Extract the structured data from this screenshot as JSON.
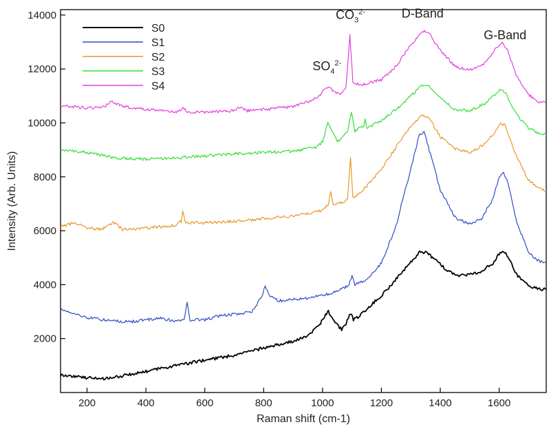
{
  "chart_data": {
    "type": "line",
    "title": "",
    "xlabel": "Raman shift (cm-1)",
    "ylabel": "Intensity (Arb. Units)",
    "xlim": [
      110,
      1760
    ],
    "ylim": [
      0,
      14200
    ],
    "xticks": [
      200,
      400,
      600,
      800,
      1000,
      1200,
      1400,
      1600
    ],
    "yticks": [
      2000,
      4000,
      6000,
      8000,
      10000,
      12000,
      14000
    ],
    "grid": false,
    "legend_position": "top-left",
    "series": [
      {
        "name": "S0",
        "color": "#000000",
        "points": [
          [
            110,
            650
          ],
          [
            200,
            550
          ],
          [
            250,
            500
          ],
          [
            300,
            580
          ],
          [
            400,
            780
          ],
          [
            500,
            1000
          ],
          [
            600,
            1200
          ],
          [
            700,
            1380
          ],
          [
            800,
            1650
          ],
          [
            900,
            1900
          ],
          [
            950,
            2100
          ],
          [
            990,
            2500
          ],
          [
            1010,
            2900
          ],
          [
            1020,
            3000
          ],
          [
            1035,
            2700
          ],
          [
            1050,
            2500
          ],
          [
            1065,
            2350
          ],
          [
            1080,
            2550
          ],
          [
            1095,
            2950
          ],
          [
            1105,
            2700
          ],
          [
            1120,
            2800
          ],
          [
            1150,
            3100
          ],
          [
            1200,
            3600
          ],
          [
            1250,
            4200
          ],
          [
            1300,
            4850
          ],
          [
            1330,
            5200
          ],
          [
            1350,
            5200
          ],
          [
            1380,
            4950
          ],
          [
            1420,
            4550
          ],
          [
            1460,
            4350
          ],
          [
            1500,
            4380
          ],
          [
            1540,
            4500
          ],
          [
            1580,
            4800
          ],
          [
            1600,
            5150
          ],
          [
            1615,
            5250
          ],
          [
            1630,
            5050
          ],
          [
            1660,
            4350
          ],
          [
            1700,
            3950
          ],
          [
            1730,
            3850
          ],
          [
            1760,
            3820
          ]
        ]
      },
      {
        "name": "S1",
        "color": "#2b4bc4",
        "points": [
          [
            110,
            3100
          ],
          [
            150,
            2950
          ],
          [
            200,
            2780
          ],
          [
            250,
            2700
          ],
          [
            300,
            2650
          ],
          [
            350,
            2620
          ],
          [
            400,
            2700
          ],
          [
            450,
            2750
          ],
          [
            500,
            2650
          ],
          [
            530,
            2700
          ],
          [
            540,
            3300
          ],
          [
            550,
            2700
          ],
          [
            600,
            2700
          ],
          [
            650,
            2850
          ],
          [
            700,
            2900
          ],
          [
            760,
            3000
          ],
          [
            790,
            3500
          ],
          [
            805,
            3900
          ],
          [
            820,
            3600
          ],
          [
            850,
            3400
          ],
          [
            900,
            3450
          ],
          [
            950,
            3500
          ],
          [
            1000,
            3600
          ],
          [
            1050,
            3750
          ],
          [
            1090,
            4000
          ],
          [
            1100,
            4300
          ],
          [
            1110,
            4000
          ],
          [
            1150,
            4200
          ],
          [
            1200,
            4800
          ],
          [
            1250,
            6200
          ],
          [
            1300,
            8300
          ],
          [
            1330,
            9600
          ],
          [
            1345,
            9650
          ],
          [
            1370,
            8700
          ],
          [
            1400,
            7500
          ],
          [
            1450,
            6500
          ],
          [
            1500,
            6250
          ],
          [
            1540,
            6450
          ],
          [
            1580,
            7200
          ],
          [
            1600,
            8000
          ],
          [
            1615,
            8150
          ],
          [
            1630,
            7800
          ],
          [
            1660,
            6300
          ],
          [
            1700,
            5200
          ],
          [
            1730,
            4900
          ],
          [
            1760,
            4800
          ]
        ]
      },
      {
        "name": "S2",
        "color": "#e8962a",
        "points": [
          [
            110,
            6150
          ],
          [
            160,
            6300
          ],
          [
            200,
            6100
          ],
          [
            250,
            6050
          ],
          [
            290,
            6300
          ],
          [
            320,
            6050
          ],
          [
            400,
            6100
          ],
          [
            450,
            6150
          ],
          [
            500,
            6200
          ],
          [
            520,
            6350
          ],
          [
            525,
            6750
          ],
          [
            535,
            6300
          ],
          [
            600,
            6300
          ],
          [
            700,
            6350
          ],
          [
            800,
            6450
          ],
          [
            900,
            6550
          ],
          [
            1000,
            6750
          ],
          [
            1020,
            7000
          ],
          [
            1028,
            7450
          ],
          [
            1036,
            7000
          ],
          [
            1060,
            7050
          ],
          [
            1085,
            7150
          ],
          [
            1095,
            8750
          ],
          [
            1103,
            7200
          ],
          [
            1150,
            7650
          ],
          [
            1200,
            8300
          ],
          [
            1250,
            9100
          ],
          [
            1300,
            9900
          ],
          [
            1340,
            10300
          ],
          [
            1360,
            10200
          ],
          [
            1400,
            9500
          ],
          [
            1450,
            9050
          ],
          [
            1500,
            8900
          ],
          [
            1550,
            9200
          ],
          [
            1590,
            9700
          ],
          [
            1605,
            10000
          ],
          [
            1620,
            9900
          ],
          [
            1660,
            8700
          ],
          [
            1700,
            7900
          ],
          [
            1730,
            7600
          ],
          [
            1760,
            7450
          ]
        ]
      },
      {
        "name": "S3",
        "color": "#33dd33",
        "points": [
          [
            110,
            9000
          ],
          [
            200,
            8900
          ],
          [
            300,
            8700
          ],
          [
            400,
            8650
          ],
          [
            500,
            8700
          ],
          [
            600,
            8780
          ],
          [
            700,
            8850
          ],
          [
            800,
            8900
          ],
          [
            900,
            8950
          ],
          [
            980,
            9100
          ],
          [
            1000,
            9300
          ],
          [
            1018,
            10000
          ],
          [
            1030,
            9700
          ],
          [
            1050,
            9350
          ],
          [
            1065,
            9400
          ],
          [
            1085,
            9700
          ],
          [
            1098,
            10400
          ],
          [
            1110,
            9700
          ],
          [
            1140,
            9900
          ],
          [
            1145,
            10100
          ],
          [
            1150,
            9800
          ],
          [
            1200,
            10100
          ],
          [
            1250,
            10500
          ],
          [
            1300,
            11000
          ],
          [
            1340,
            11400
          ],
          [
            1360,
            11350
          ],
          [
            1400,
            10900
          ],
          [
            1450,
            10500
          ],
          [
            1500,
            10450
          ],
          [
            1550,
            10700
          ],
          [
            1590,
            11100
          ],
          [
            1605,
            11250
          ],
          [
            1620,
            11150
          ],
          [
            1660,
            10300
          ],
          [
            1700,
            9800
          ],
          [
            1730,
            9650
          ],
          [
            1760,
            9550
          ]
        ]
      },
      {
        "name": "S4",
        "color": "#e23ee0",
        "points": [
          [
            110,
            10650
          ],
          [
            150,
            10600
          ],
          [
            200,
            10550
          ],
          [
            260,
            10600
          ],
          [
            285,
            10800
          ],
          [
            300,
            10700
          ],
          [
            350,
            10550
          ],
          [
            400,
            10500
          ],
          [
            450,
            10450
          ],
          [
            500,
            10400
          ],
          [
            530,
            10550
          ],
          [
            540,
            10400
          ],
          [
            600,
            10400
          ],
          [
            700,
            10450
          ],
          [
            720,
            10600
          ],
          [
            740,
            10450
          ],
          [
            800,
            10500
          ],
          [
            900,
            10600
          ],
          [
            960,
            10800
          ],
          [
            990,
            11000
          ],
          [
            1010,
            11300
          ],
          [
            1020,
            11350
          ],
          [
            1040,
            11150
          ],
          [
            1060,
            11100
          ],
          [
            1080,
            11300
          ],
          [
            1093,
            13300
          ],
          [
            1103,
            11500
          ],
          [
            1130,
            11400
          ],
          [
            1200,
            11600
          ],
          [
            1250,
            12100
          ],
          [
            1300,
            12900
          ],
          [
            1340,
            13400
          ],
          [
            1360,
            13350
          ],
          [
            1400,
            12700
          ],
          [
            1450,
            12100
          ],
          [
            1500,
            11950
          ],
          [
            1550,
            12200
          ],
          [
            1590,
            12800
          ],
          [
            1610,
            12950
          ],
          [
            1625,
            12800
          ],
          [
            1660,
            11700
          ],
          [
            1700,
            11050
          ],
          [
            1730,
            10800
          ],
          [
            1760,
            10750
          ]
        ]
      }
    ],
    "annotations": [
      {
        "base": "SO",
        "sub": "4",
        "sup": "2-",
        "x": 1015,
        "y": 11950
      },
      {
        "base": "CO",
        "sub": "3",
        "sup": "2-",
        "x": 1095,
        "y": 13850
      },
      {
        "text": "D-Band",
        "x": 1340,
        "y": 13900
      },
      {
        "text": "G-Band",
        "x": 1620,
        "y": 13100
      }
    ]
  }
}
